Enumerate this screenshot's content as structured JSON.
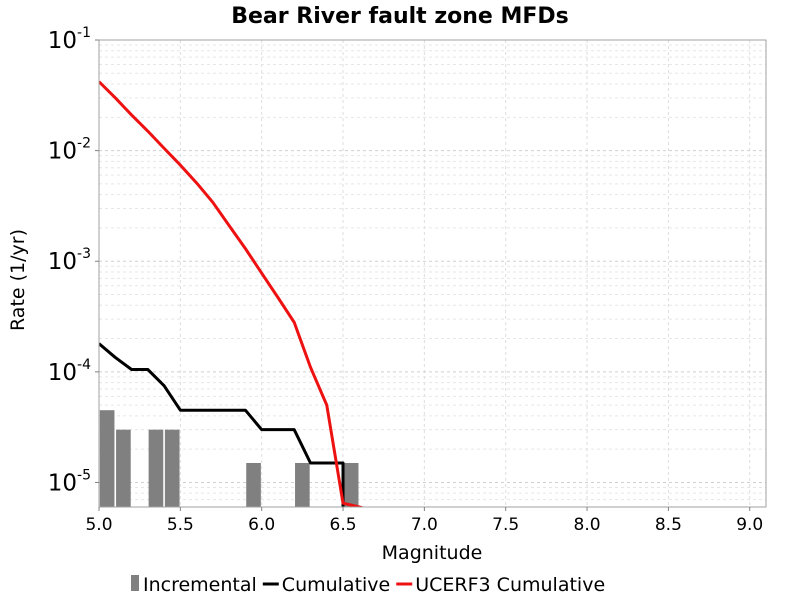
{
  "chart_data": {
    "type": "line",
    "title": "Bear River fault zone MFDs",
    "xlabel": "Magnitude",
    "ylabel": "Rate (1/yr)",
    "xlim": [
      5.0,
      9.1
    ],
    "ylim": [
      6e-06,
      0.1
    ],
    "y_scale": "log",
    "grid": true,
    "legend_position": "bottom",
    "x_ticks": [
      "5.0",
      "5.5",
      "6.0",
      "6.5",
      "7.0",
      "7.5",
      "8.0",
      "8.5",
      "9.0"
    ],
    "x_tick_values": [
      5.0,
      5.5,
      6.0,
      6.5,
      7.0,
      7.5,
      8.0,
      8.5,
      9.0
    ],
    "y_ticks": [
      {
        "value": 0.1,
        "base": "10",
        "exp": "-1"
      },
      {
        "value": 0.01,
        "base": "10",
        "exp": "-2"
      },
      {
        "value": 0.001,
        "base": "10",
        "exp": "-3"
      },
      {
        "value": 0.0001,
        "base": "10",
        "exp": "-4"
      },
      {
        "value": 1e-05,
        "base": "10",
        "exp": "-5"
      }
    ],
    "series": [
      {
        "name": "Incremental",
        "kind": "bar",
        "color": "#808080",
        "bar_width": 0.09,
        "x": [
          5.05,
          5.15,
          5.35,
          5.45,
          5.95,
          6.25,
          6.55
        ],
        "y": [
          4.5e-05,
          3e-05,
          3e-05,
          3e-05,
          1.5e-05,
          1.5e-05,
          1.5e-05
        ]
      },
      {
        "name": "Cumulative",
        "kind": "line",
        "color": "#000000",
        "x": [
          5.0,
          5.1,
          5.2,
          5.3,
          5.4,
          5.5,
          5.6,
          5.7,
          5.8,
          5.9,
          6.0,
          6.1,
          6.2,
          6.3,
          6.4,
          6.5,
          6.5
        ],
        "y": [
          0.00018,
          0.000135,
          0.000105,
          0.000105,
          7.5e-05,
          4.5e-05,
          4.5e-05,
          4.5e-05,
          4.5e-05,
          4.5e-05,
          3e-05,
          3e-05,
          3e-05,
          1.5e-05,
          1.5e-05,
          1.5e-05,
          5e-06
        ]
      },
      {
        "name": "UCERF3 Cumulative",
        "kind": "line",
        "color": "#ee1111",
        "x": [
          5.0,
          5.1,
          5.2,
          5.3,
          5.4,
          5.5,
          5.6,
          5.7,
          5.8,
          5.9,
          6.0,
          6.1,
          6.2,
          6.3,
          6.4,
          6.5,
          6.6,
          6.7,
          6.8
        ],
        "y": [
          0.042,
          0.03,
          0.021,
          0.015,
          0.0105,
          0.0074,
          0.0051,
          0.0034,
          0.0021,
          0.0013,
          0.00078,
          0.00047,
          0.00028,
          0.00011,
          5e-05,
          6.5e-06,
          6e-06,
          5.5e-06,
          5e-06
        ]
      }
    ]
  }
}
